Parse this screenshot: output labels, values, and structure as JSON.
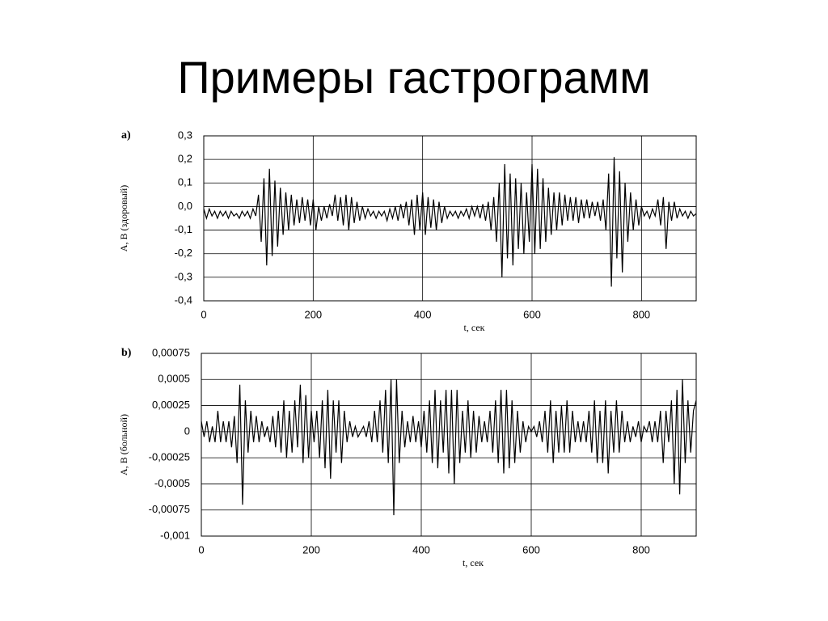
{
  "title": "Примеры гастрограмм",
  "chart_data": [
    {
      "type": "line",
      "panel": "a)",
      "ylabel": "А, В (здоровый)",
      "xlabel": "t, сек",
      "grid": true,
      "xlim": [
        0,
        900
      ],
      "xticks": [
        0,
        200,
        400,
        600,
        800
      ],
      "ylim": [
        -0.4,
        0.3
      ],
      "yticks": [
        {
          "value": -0.4,
          "label": "-0,4"
        },
        {
          "value": -0.3,
          "label": "-0,3"
        },
        {
          "value": -0.2,
          "label": "-0,2"
        },
        {
          "value": -0.1,
          "label": "-0,1"
        },
        {
          "value": 0,
          "label": "0,0"
        },
        {
          "value": 0.1,
          "label": "0,1"
        },
        {
          "value": 0.2,
          "label": "0,2"
        },
        {
          "value": 0.3,
          "label": "0,3"
        }
      ],
      "x": [
        0,
        5,
        10,
        15,
        20,
        25,
        30,
        35,
        40,
        45,
        50,
        55,
        60,
        65,
        70,
        75,
        80,
        85,
        90,
        95,
        100,
        105,
        110,
        115,
        120,
        125,
        130,
        135,
        140,
        145,
        150,
        155,
        160,
        165,
        170,
        175,
        180,
        185,
        190,
        195,
        200,
        205,
        210,
        215,
        220,
        225,
        230,
        235,
        240,
        245,
        250,
        255,
        260,
        265,
        270,
        275,
        280,
        285,
        290,
        295,
        300,
        305,
        310,
        315,
        320,
        325,
        330,
        335,
        340,
        345,
        350,
        355,
        360,
        365,
        370,
        375,
        380,
        385,
        390,
        395,
        400,
        405,
        410,
        415,
        420,
        425,
        430,
        435,
        440,
        445,
        450,
        455,
        460,
        465,
        470,
        475,
        480,
        485,
        490,
        495,
        500,
        505,
        510,
        515,
        520,
        525,
        530,
        535,
        540,
        545,
        550,
        555,
        560,
        565,
        570,
        575,
        580,
        585,
        590,
        595,
        600,
        605,
        610,
        615,
        620,
        625,
        630,
        635,
        640,
        645,
        650,
        655,
        660,
        665,
        670,
        675,
        680,
        685,
        690,
        695,
        700,
        705,
        710,
        715,
        720,
        725,
        730,
        735,
        740,
        745,
        750,
        755,
        760,
        765,
        770,
        775,
        780,
        785,
        790,
        795,
        800,
        805,
        810,
        815,
        820,
        825,
        830,
        835,
        840,
        845,
        850,
        855,
        860,
        865,
        870,
        875,
        880,
        885,
        890,
        895,
        900
      ],
      "series": [
        {
          "name": "A",
          "color": "#000000",
          "values": [
            -0.01,
            -0.05,
            -0.01,
            -0.04,
            -0.02,
            -0.05,
            -0.02,
            -0.04,
            -0.02,
            -0.05,
            -0.02,
            -0.04,
            -0.03,
            -0.05,
            -0.02,
            -0.04,
            -0.02,
            -0.05,
            -0.01,
            -0.04,
            0.05,
            -0.15,
            0.12,
            -0.25,
            0.16,
            -0.21,
            0.11,
            -0.17,
            0.08,
            -0.12,
            0.06,
            -0.1,
            0.05,
            -0.08,
            0.03,
            -0.07,
            0.04,
            -0.06,
            0.03,
            -0.08,
            0.03,
            -0.1,
            0.0,
            -0.06,
            0.0,
            -0.05,
            0.01,
            -0.04,
            0.05,
            -0.06,
            0.04,
            -0.08,
            0.05,
            -0.1,
            0.04,
            -0.07,
            0.02,
            -0.06,
            0.0,
            -0.05,
            -0.01,
            -0.04,
            -0.02,
            -0.05,
            -0.02,
            -0.04,
            -0.02,
            -0.06,
            -0.01,
            -0.05,
            0.0,
            -0.06,
            0.01,
            -0.05,
            0.02,
            -0.08,
            0.03,
            -0.12,
            0.05,
            -0.1,
            0.06,
            -0.12,
            0.04,
            -0.09,
            0.03,
            -0.1,
            0.02,
            -0.07,
            0.0,
            -0.05,
            -0.02,
            -0.04,
            -0.02,
            -0.05,
            -0.02,
            -0.04,
            -0.01,
            -0.05,
            0.0,
            -0.04,
            0.0,
            -0.05,
            0.01,
            -0.06,
            0.02,
            -0.1,
            0.04,
            -0.15,
            0.1,
            -0.3,
            0.18,
            -0.22,
            0.14,
            -0.25,
            0.12,
            -0.18,
            0.1,
            -0.2,
            0.06,
            -0.15,
            0.18,
            -0.2,
            0.16,
            -0.18,
            0.12,
            -0.15,
            0.08,
            -0.12,
            0.06,
            -0.1,
            0.06,
            -0.08,
            0.05,
            -0.06,
            0.04,
            -0.06,
            0.04,
            -0.07,
            0.03,
            -0.05,
            0.03,
            -0.05,
            0.02,
            -0.04,
            0.02,
            -0.06,
            0.03,
            -0.1,
            0.14,
            -0.34,
            0.21,
            -0.22,
            0.15,
            -0.28,
            0.1,
            -0.15,
            0.06,
            -0.1,
            0.03,
            -0.08,
            0.0,
            -0.04,
            -0.02,
            -0.05,
            -0.01,
            -0.04,
            0.03,
            -0.08,
            0.04,
            -0.18,
            0.02,
            -0.06,
            0.02,
            -0.05,
            -0.01,
            -0.04,
            -0.02,
            -0.05,
            -0.02,
            -0.04,
            -0.03
          ]
        }
      ]
    },
    {
      "type": "line",
      "panel": "b)",
      "ylabel": "А, В (больной)",
      "xlabel": "t, сек",
      "grid": true,
      "xlim": [
        0,
        900
      ],
      "xticks": [
        0,
        200,
        400,
        600,
        800
      ],
      "ylim": [
        -0.001,
        0.00075
      ],
      "yticks": [
        {
          "value": -0.001,
          "label": "-0,001"
        },
        {
          "value": -0.00075,
          "label": "-0,00075"
        },
        {
          "value": -0.0005,
          "label": "-0,0005"
        },
        {
          "value": -0.00025,
          "label": "-0,00025"
        },
        0,
        {
          "value": 0.00025,
          "label": "0,00025"
        },
        {
          "value": 0.0005,
          "label": "0,0005"
        },
        {
          "value": 0.00075,
          "label": "0,00075"
        }
      ],
      "x": [
        0,
        5,
        10,
        15,
        20,
        25,
        30,
        35,
        40,
        45,
        50,
        55,
        60,
        65,
        70,
        75,
        80,
        85,
        90,
        95,
        100,
        105,
        110,
        115,
        120,
        125,
        130,
        135,
        140,
        145,
        150,
        155,
        160,
        165,
        170,
        175,
        180,
        185,
        190,
        195,
        200,
        205,
        210,
        215,
        220,
        225,
        230,
        235,
        240,
        245,
        250,
        255,
        260,
        265,
        270,
        275,
        280,
        285,
        290,
        295,
        300,
        305,
        310,
        315,
        320,
        325,
        330,
        335,
        340,
        345,
        350,
        355,
        360,
        365,
        370,
        375,
        380,
        385,
        390,
        395,
        400,
        405,
        410,
        415,
        420,
        425,
        430,
        435,
        440,
        445,
        450,
        455,
        460,
        465,
        470,
        475,
        480,
        485,
        490,
        495,
        500,
        505,
        510,
        515,
        520,
        525,
        530,
        535,
        540,
        545,
        550,
        555,
        560,
        565,
        570,
        575,
        580,
        585,
        590,
        595,
        600,
        605,
        610,
        615,
        620,
        625,
        630,
        635,
        640,
        645,
        650,
        655,
        660,
        665,
        670,
        675,
        680,
        685,
        690,
        695,
        700,
        705,
        710,
        715,
        720,
        725,
        730,
        735,
        740,
        745,
        750,
        755,
        760,
        765,
        770,
        775,
        780,
        785,
        790,
        795,
        800,
        805,
        810,
        815,
        820,
        825,
        830,
        835,
        840,
        845,
        850,
        855,
        860,
        865,
        870,
        875,
        880,
        885,
        890,
        895,
        900
      ],
      "series": [
        {
          "name": "B",
          "color": "#000000",
          "values": [
            0.0001,
            -5e-05,
            0.0001,
            -0.0001,
            5e-05,
            -0.0001,
            0.0002,
            -0.0001,
            0.0001,
            -0.0001,
            0.0001,
            -0.00015,
            0.00015,
            -0.0003,
            0.00045,
            -0.0007,
            0.0003,
            -0.0002,
            0.0002,
            -0.0001,
            0.00015,
            -0.0001,
            0.0001,
            -5e-05,
            5e-05,
            -0.0001,
            0.00015,
            -0.00015,
            0.0002,
            -0.0002,
            0.0003,
            -0.00025,
            0.0002,
            -0.0002,
            0.0003,
            -0.00015,
            0.00045,
            -0.0003,
            0.00035,
            -0.00025,
            0.0002,
            -0.0001,
            0.0002,
            -0.00025,
            0.0003,
            -0.00035,
            0.0004,
            -0.00045,
            0.0003,
            -0.0002,
            0.0003,
            -0.0003,
            0.0002,
            -0.0001,
            0.0001,
            -5e-05,
            5e-05,
            -5e-05,
            0.0,
            5e-05,
            -5e-05,
            0.0001,
            -0.0001,
            0.0002,
            -0.0001,
            0.0003,
            -0.0002,
            0.0004,
            -0.0003,
            0.0005,
            -0.0008,
            0.0005,
            -0.0003,
            0.0002,
            -0.00015,
            0.0001,
            -0.0001,
            0.00015,
            -0.0001,
            0.0001,
            -0.00015,
            0.0002,
            -0.0002,
            0.0003,
            -0.0003,
            0.0004,
            -0.00035,
            0.0003,
            -0.0002,
            0.0004,
            -0.0004,
            0.0004,
            -0.0005,
            0.0004,
            -0.0003,
            0.0002,
            -0.0002,
            0.0003,
            -0.00025,
            0.0002,
            -0.0002,
            0.00015,
            -0.0001,
            0.0001,
            -0.0001,
            0.0002,
            -0.0002,
            0.0003,
            -0.0003,
            0.0004,
            -0.0004,
            0.0004,
            -0.00035,
            0.0003,
            -0.0003,
            0.0002,
            -0.0002,
            0.0001,
            -0.0001,
            5e-05,
            0.0,
            5e-05,
            -5e-05,
            0.0001,
            -0.0001,
            0.0002,
            -0.0002,
            0.0003,
            -0.0003,
            0.0002,
            -0.0002,
            0.00025,
            -0.0002,
            0.0003,
            -0.0002,
            0.0002,
            -0.0001,
            0.0001,
            -0.0001,
            0.0001,
            -0.0001,
            0.0002,
            -0.0002,
            0.0003,
            -0.0003,
            0.0002,
            -0.0003,
            0.0003,
            -0.0004,
            0.0002,
            -0.0002,
            0.0003,
            -0.0002,
            0.0002,
            -0.0001,
            0.0001,
            -0.0001,
            5e-05,
            -5e-05,
            0.0001,
            -0.0001,
            5e-05,
            0.0,
            0.0001,
            -0.0001,
            0.0001,
            -0.0001,
            0.0002,
            -0.0003,
            0.0002,
            -0.0001,
            0.0003,
            -0.0005,
            0.0004,
            -0.0006,
            0.0005,
            -0.0003,
            0.0003,
            -0.0002,
            0.0002,
            0.0003
          ]
        }
      ]
    }
  ]
}
